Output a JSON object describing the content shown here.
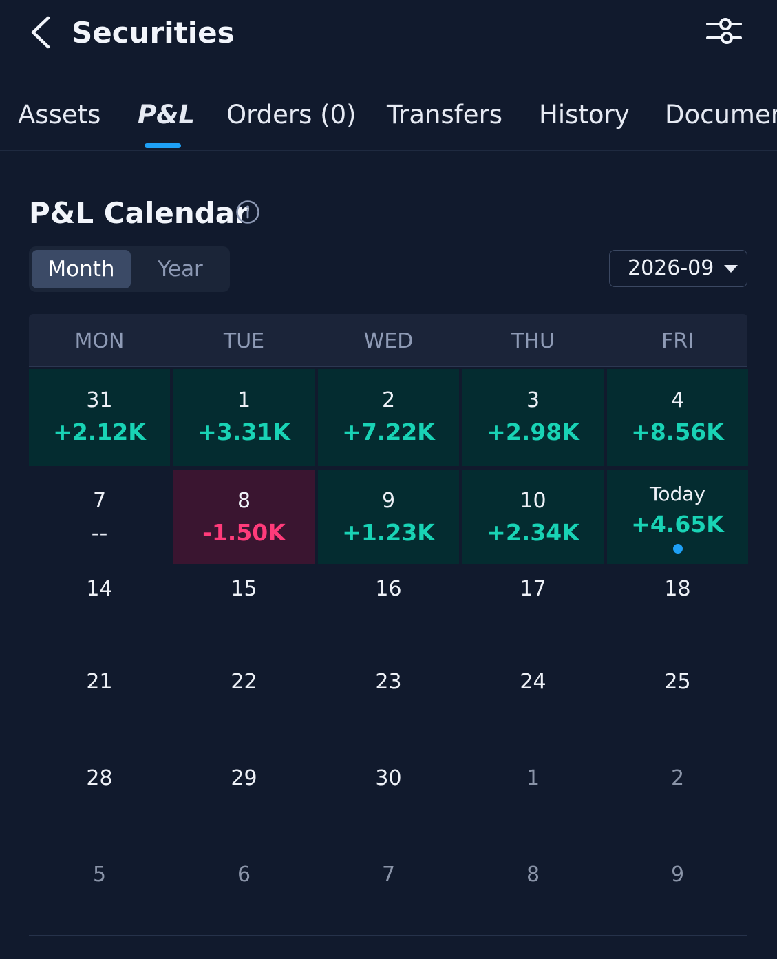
{
  "header": {
    "title": "Securities",
    "back_icon": "chevron-left-icon",
    "filter_icon": "sliders-icon"
  },
  "tabs": [
    {
      "label": "Assets",
      "active": false
    },
    {
      "label": "P&L",
      "active": true
    },
    {
      "label": "Orders (0)",
      "active": false
    },
    {
      "label": "Transfers",
      "active": false
    },
    {
      "label": "History",
      "active": false
    },
    {
      "label": "Documen",
      "active": false
    }
  ],
  "calendar": {
    "title": "P&L Calendar",
    "info_icon": "info-icon",
    "modes": {
      "month": "Month",
      "year": "Year",
      "selected": "Month"
    },
    "selected_period": "2026-09",
    "weekdays": [
      "MON",
      "TUE",
      "WED",
      "THU",
      "FRI"
    ],
    "rows": [
      [
        {
          "day": "31",
          "pnl": "+2.12K",
          "state": "pos"
        },
        {
          "day": "1",
          "pnl": "+3.31K",
          "state": "pos"
        },
        {
          "day": "2",
          "pnl": "+7.22K",
          "state": "pos"
        },
        {
          "day": "3",
          "pnl": "+2.98K",
          "state": "pos"
        },
        {
          "day": "4",
          "pnl": "+8.56K",
          "state": "pos"
        }
      ],
      [
        {
          "day": "7",
          "pnl": "--",
          "state": "none"
        },
        {
          "day": "8",
          "pnl": "-1.50K",
          "state": "neg"
        },
        {
          "day": "9",
          "pnl": "+1.23K",
          "state": "pos"
        },
        {
          "day": "10",
          "pnl": "+2.34K",
          "state": "pos"
        },
        {
          "day": "Today",
          "pnl": "+4.65K",
          "state": "pos",
          "today": true
        }
      ],
      [
        {
          "day": "14"
        },
        {
          "day": "15"
        },
        {
          "day": "16"
        },
        {
          "day": "17"
        },
        {
          "day": "18"
        }
      ],
      [
        {
          "day": "21"
        },
        {
          "day": "22"
        },
        {
          "day": "23"
        },
        {
          "day": "24"
        },
        {
          "day": "25"
        }
      ],
      [
        {
          "day": "28"
        },
        {
          "day": "29"
        },
        {
          "day": "30"
        },
        {
          "day": "1",
          "muted": true
        },
        {
          "day": "2",
          "muted": true
        }
      ],
      [
        {
          "day": "5",
          "muted": true
        },
        {
          "day": "6",
          "muted": true
        },
        {
          "day": "7",
          "muted": true
        },
        {
          "day": "8",
          "muted": true
        },
        {
          "day": "9",
          "muted": true
        }
      ]
    ]
  },
  "colors": {
    "background": "#111a2d",
    "accent": "#1ea0f6",
    "profit": "#19d3b5",
    "loss": "#ff3b7a",
    "profit_cell": "#042c30",
    "loss_cell": "#3a1530"
  }
}
